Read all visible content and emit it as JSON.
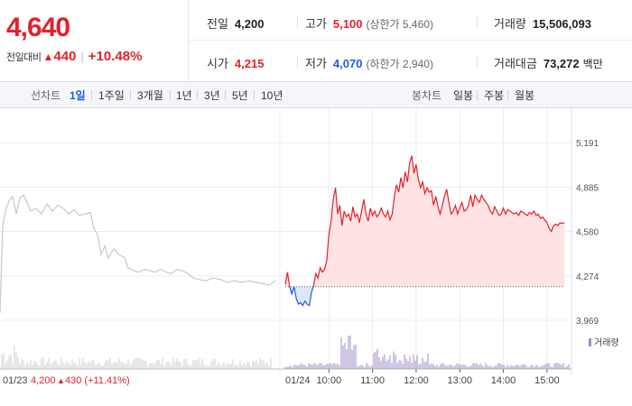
{
  "summary": {
    "price": "4,640",
    "change_label": "전일대비",
    "change_arrow": "▲",
    "change_value": "440",
    "change_pct": "+10.48%",
    "prev_close_label": "전일",
    "prev_close": "4,200",
    "open_label": "시가",
    "open": "4,215",
    "high_label": "고가",
    "high": "5,100",
    "upper_limit": "(상한가 5,460)",
    "low_label": "저가",
    "low": "4,070",
    "lower_limit": "(하한가 2,940)",
    "volume_label": "거래량",
    "volume": "15,506,093",
    "amount_label": "거래대금",
    "amount": "73,272",
    "amount_unit": "백만"
  },
  "tabs": {
    "line_label": "선차트",
    "line": [
      "1일",
      "1주일",
      "3개월",
      "1년",
      "3년",
      "5년",
      "10년"
    ],
    "active": "1일",
    "candle_label": "봉차트",
    "candle": [
      "일봉",
      "주봉",
      "월봉"
    ]
  },
  "colors": {
    "up": "#e5202b",
    "down": "#1d5ed8",
    "up_fill": "#fde3e4",
    "down_fill": "#dbe7fb",
    "prev_day": "#c8c8c8",
    "volume": "#9d8ec4",
    "grid": "#ececec"
  },
  "chart_data": {
    "type": "line",
    "y_ticks": [
      "5,191",
      "4,885",
      "4,580",
      "4,274",
      "3,969"
    ],
    "y_values": [
      5191,
      4885,
      4580,
      4274,
      3969
    ],
    "ylim": [
      3969,
      5191
    ],
    "x_tick_labels": [
      "10:00",
      "11:00",
      "12:00",
      "13:00",
      "14:00",
      "15:00"
    ],
    "x_tick_times": [
      60,
      120,
      180,
      240,
      300,
      360
    ],
    "prev_day_label": "01/23",
    "prev_day_close": "4,200",
    "prev_day_change_arrow": "▲",
    "prev_day_change": "430 (+11.41%)",
    "today_label": "01/24",
    "baseline": 4200,
    "volume_legend": "거래량",
    "series": [
      {
        "role": "prev_day",
        "points": [
          [
            0,
            4020
          ],
          [
            3,
            4620
          ],
          [
            6,
            4720
          ],
          [
            10,
            4790
          ],
          [
            14,
            4820
          ],
          [
            18,
            4700
          ],
          [
            22,
            4810
          ],
          [
            26,
            4830
          ],
          [
            30,
            4780
          ],
          [
            34,
            4720
          ],
          [
            40,
            4740
          ],
          [
            46,
            4700
          ],
          [
            52,
            4770
          ],
          [
            58,
            4720
          ],
          [
            64,
            4760
          ],
          [
            70,
            4740
          ],
          [
            76,
            4700
          ],
          [
            82,
            4730
          ],
          [
            88,
            4690
          ],
          [
            94,
            4700
          ],
          [
            100,
            4710
          ],
          [
            104,
            4600
          ],
          [
            108,
            4560
          ],
          [
            112,
            4420
          ],
          [
            116,
            4480
          ],
          [
            120,
            4400
          ],
          [
            126,
            4460
          ],
          [
            132,
            4420
          ],
          [
            138,
            4400
          ],
          [
            142,
            4330
          ],
          [
            148,
            4310
          ],
          [
            154,
            4300
          ],
          [
            160,
            4320
          ],
          [
            166,
            4310
          ],
          [
            172,
            4300
          ],
          [
            178,
            4320
          ],
          [
            184,
            4300
          ],
          [
            190,
            4290
          ],
          [
            196,
            4320
          ],
          [
            202,
            4310
          ],
          [
            208,
            4290
          ],
          [
            214,
            4260
          ],
          [
            220,
            4250
          ],
          [
            228,
            4240
          ],
          [
            236,
            4260
          ],
          [
            244,
            4250
          ],
          [
            252,
            4230
          ],
          [
            260,
            4240
          ],
          [
            268,
            4230
          ],
          [
            276,
            4240
          ],
          [
            284,
            4230
          ],
          [
            292,
            4220
          ],
          [
            298,
            4210
          ],
          [
            305,
            4240
          ]
        ]
      },
      {
        "role": "today",
        "points": [
          [
            0,
            4215
          ],
          [
            3,
            4300
          ],
          [
            6,
            4200
          ],
          [
            9,
            4150
          ],
          [
            12,
            4200
          ],
          [
            15,
            4120
          ],
          [
            18,
            4080
          ],
          [
            21,
            4090
          ],
          [
            24,
            4070
          ],
          [
            27,
            4100
          ],
          [
            30,
            4080
          ],
          [
            33,
            4070
          ],
          [
            36,
            4160
          ],
          [
            39,
            4210
          ],
          [
            42,
            4290
          ],
          [
            45,
            4260
          ],
          [
            48,
            4330
          ],
          [
            51,
            4300
          ],
          [
            54,
            4320
          ],
          [
            57,
            4380
          ],
          [
            60,
            4560
          ],
          [
            63,
            4650
          ],
          [
            66,
            4800
          ],
          [
            69,
            4880
          ],
          [
            72,
            4700
          ],
          [
            75,
            4760
          ],
          [
            78,
            4620
          ],
          [
            81,
            4720
          ],
          [
            84,
            4680
          ],
          [
            87,
            4700
          ],
          [
            90,
            4650
          ],
          [
            93,
            4750
          ],
          [
            96,
            4680
          ],
          [
            99,
            4700
          ],
          [
            102,
            4640
          ],
          [
            105,
            4720
          ],
          [
            108,
            4800
          ],
          [
            111,
            4700
          ],
          [
            114,
            4650
          ],
          [
            117,
            4740
          ],
          [
            120,
            4690
          ],
          [
            123,
            4720
          ],
          [
            126,
            4680
          ],
          [
            129,
            4700
          ],
          [
            132,
            4740
          ],
          [
            135,
            4700
          ],
          [
            138,
            4680
          ],
          [
            141,
            4720
          ],
          [
            144,
            4660
          ],
          [
            147,
            4700
          ],
          [
            150,
            4820
          ],
          [
            153,
            4900
          ],
          [
            156,
            4850
          ],
          [
            159,
            4950
          ],
          [
            162,
            4880
          ],
          [
            165,
            4990
          ],
          [
            168,
            4920
          ],
          [
            171,
            5050
          ],
          [
            174,
            5100
          ],
          [
            177,
            4980
          ],
          [
            180,
            5040
          ],
          [
            183,
            4940
          ],
          [
            186,
            4880
          ],
          [
            189,
            4920
          ],
          [
            192,
            4840
          ],
          [
            195,
            4880
          ],
          [
            198,
            4850
          ],
          [
            201,
            4860
          ],
          [
            204,
            4760
          ],
          [
            207,
            4820
          ],
          [
            210,
            4750
          ],
          [
            213,
            4700
          ],
          [
            216,
            4760
          ],
          [
            219,
            4820
          ],
          [
            222,
            4870
          ],
          [
            225,
            4780
          ],
          [
            228,
            4700
          ],
          [
            231,
            4720
          ],
          [
            234,
            4760
          ],
          [
            237,
            4700
          ],
          [
            240,
            4740
          ],
          [
            243,
            4780
          ],
          [
            246,
            4720
          ],
          [
            249,
            4730
          ],
          [
            252,
            4760
          ],
          [
            255,
            4830
          ],
          [
            258,
            4750
          ],
          [
            261,
            4830
          ],
          [
            264,
            4800
          ],
          [
            267,
            4780
          ],
          [
            270,
            4830
          ],
          [
            273,
            4800
          ],
          [
            276,
            4780
          ],
          [
            279,
            4760
          ],
          [
            282,
            4720
          ],
          [
            285,
            4700
          ],
          [
            288,
            4750
          ],
          [
            291,
            4720
          ],
          [
            294,
            4690
          ],
          [
            297,
            4700
          ],
          [
            300,
            4740
          ],
          [
            303,
            4700
          ],
          [
            306,
            4730
          ],
          [
            309,
            4720
          ],
          [
            312,
            4710
          ],
          [
            315,
            4700
          ],
          [
            318,
            4710
          ],
          [
            321,
            4690
          ],
          [
            324,
            4720
          ],
          [
            327,
            4710
          ],
          [
            330,
            4700
          ],
          [
            333,
            4690
          ],
          [
            336,
            4710
          ],
          [
            339,
            4700
          ],
          [
            342,
            4720
          ],
          [
            345,
            4690
          ],
          [
            348,
            4700
          ],
          [
            351,
            4670
          ],
          [
            354,
            4680
          ],
          [
            357,
            4660
          ],
          [
            360,
            4640
          ],
          [
            363,
            4600
          ],
          [
            366,
            4580
          ],
          [
            369,
            4620
          ],
          [
            372,
            4630
          ],
          [
            375,
            4620
          ],
          [
            378,
            4640
          ],
          [
            381,
            4635
          ],
          [
            384,
            4640
          ]
        ]
      }
    ]
  }
}
